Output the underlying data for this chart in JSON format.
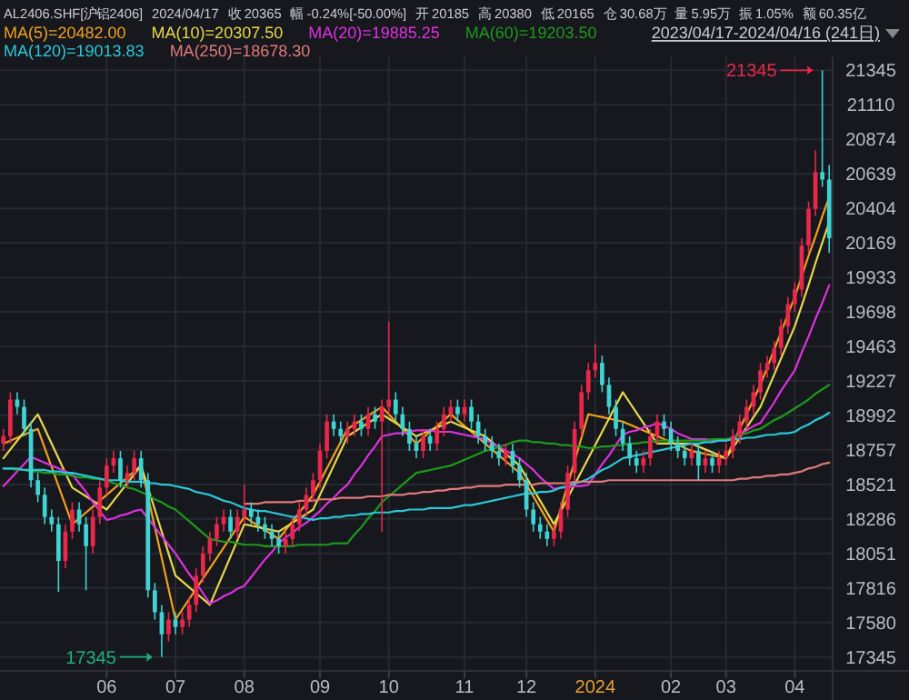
{
  "chart_data": {
    "type": "candlestick",
    "title": "AL2406.SHF[沪铝2406]",
    "subtitle": "2024/04/17",
    "annotations": [
      "收 20365",
      "幅 -0.24%[-50.00%]",
      "开 20185",
      "高 20380",
      "低 20165",
      "仓 30.68万",
      "量 5.95万",
      "振 1.05%",
      "额 60.35亿",
      "2023/04/17-2024/04/16 (241日)",
      "21345",
      "17345"
    ],
    "categories": [
      null,
      null,
      null,
      null,
      null,
      null,
      null,
      null,
      null,
      null,
      null,
      null,
      null,
      null,
      null,
      "06",
      null,
      null,
      null,
      null,
      null,
      null,
      null,
      null,
      null,
      "07",
      null,
      null,
      null,
      null,
      null,
      null,
      null,
      null,
      null,
      "08",
      null,
      null,
      null,
      null,
      null,
      null,
      null,
      null,
      null,
      null,
      "09",
      null,
      null,
      null,
      null,
      null,
      null,
      null,
      null,
      null,
      "10",
      null,
      null,
      null,
      null,
      null,
      null,
      null,
      null,
      null,
      null,
      "11",
      null,
      null,
      null,
      null,
      null,
      null,
      null,
      null,
      "12",
      null,
      null,
      null,
      null,
      null,
      null,
      null,
      null,
      null,
      "2024",
      null,
      null,
      null,
      null,
      null,
      null,
      null,
      null,
      null,
      null,
      "02",
      null,
      null,
      null,
      null,
      null,
      null,
      null,
      "03",
      null,
      null,
      null,
      null,
      null,
      null,
      null,
      null,
      null,
      "04",
      null,
      null,
      null,
      null,
      null
    ],
    "ohlc": [
      [
        18800,
        18900,
        18750,
        18850
      ],
      [
        18850,
        19150,
        18800,
        19100
      ],
      [
        19100,
        19150,
        19000,
        19050
      ],
      [
        19050,
        19100,
        18850,
        18900
      ],
      [
        18900,
        18950,
        18500,
        18550
      ],
      [
        18550,
        18600,
        18400,
        18450
      ],
      [
        18450,
        18500,
        18250,
        18300
      ],
      [
        18300,
        18350,
        18200,
        18250
      ],
      [
        18250,
        18300,
        17790,
        18000
      ],
      [
        18000,
        18250,
        17950,
        18200
      ],
      [
        18200,
        18400,
        18150,
        18350
      ],
      [
        18350,
        18400,
        18200,
        18250
      ],
      [
        18250,
        18300,
        17800,
        18100
      ],
      [
        18100,
        18350,
        18050,
        18300
      ],
      [
        18300,
        18550,
        18250,
        18500
      ],
      [
        18500,
        18700,
        18450,
        18650
      ],
      [
        18650,
        18750,
        18600,
        18700
      ],
      [
        18700,
        18750,
        18500,
        18550
      ],
      [
        18550,
        18650,
        18500,
        18600
      ],
      [
        18600,
        18750,
        18550,
        18700
      ],
      [
        18700,
        18750,
        18500,
        18550
      ],
      [
        18550,
        18600,
        17750,
        17800
      ],
      [
        17800,
        17850,
        17600,
        17650
      ],
      [
        17650,
        17700,
        17345,
        17500
      ],
      [
        17500,
        17650,
        17450,
        17600
      ],
      [
        17600,
        17650,
        17500,
        17550
      ],
      [
        17550,
        17650,
        17500,
        17600
      ],
      [
        17600,
        17750,
        17550,
        17700
      ],
      [
        17700,
        17950,
        17650,
        17900
      ],
      [
        17900,
        18100,
        17850,
        18050
      ],
      [
        18050,
        18200,
        18000,
        18150
      ],
      [
        18150,
        18300,
        18100,
        18250
      ],
      [
        18250,
        18350,
        18200,
        18300
      ],
      [
        18300,
        18350,
        18150,
        18200
      ],
      [
        18200,
        18350,
        18150,
        18300
      ],
      [
        18300,
        18520,
        18250,
        18350
      ],
      [
        18350,
        18400,
        18250,
        18300
      ],
      [
        18300,
        18350,
        18200,
        18250
      ],
      [
        18250,
        18300,
        18150,
        18200
      ],
      [
        18200,
        18250,
        18100,
        18150
      ],
      [
        18150,
        18200,
        18050,
        18100
      ],
      [
        18100,
        18200,
        18050,
        18150
      ],
      [
        18150,
        18300,
        18100,
        18250
      ],
      [
        18250,
        18400,
        18200,
        18350
      ],
      [
        18350,
        18500,
        18300,
        18450
      ],
      [
        18450,
        18600,
        18400,
        18550
      ],
      [
        18550,
        18800,
        18500,
        18750
      ],
      [
        18750,
        19000,
        18700,
        18950
      ],
      [
        18950,
        19000,
        18850,
        18900
      ],
      [
        18900,
        18950,
        18800,
        18850
      ],
      [
        18850,
        18950,
        18800,
        18900
      ],
      [
        18900,
        19000,
        18850,
        18950
      ],
      [
        18950,
        19000,
        18850,
        18900
      ],
      [
        18900,
        19050,
        18850,
        19000
      ],
      [
        19000,
        19050,
        18900,
        18950
      ],
      [
        18950,
        19100,
        18200,
        19050
      ],
      [
        19050,
        19630,
        19000,
        19100
      ],
      [
        19100,
        19150,
        18950,
        19000
      ],
      [
        19000,
        19050,
        18850,
        18900
      ],
      [
        18900,
        18950,
        18750,
        18800
      ],
      [
        18800,
        18850,
        18700,
        18750
      ],
      [
        18750,
        18900,
        18700,
        18850
      ],
      [
        18850,
        18900,
        18750,
        18800
      ],
      [
        18800,
        18950,
        18750,
        18900
      ],
      [
        18900,
        19050,
        18850,
        19000
      ],
      [
        19000,
        19100,
        18950,
        19050
      ],
      [
        19050,
        19100,
        18950,
        19000
      ],
      [
        19000,
        19100,
        18950,
        19050
      ],
      [
        19050,
        19100,
        18900,
        18950
      ],
      [
        18950,
        19000,
        18800,
        18850
      ],
      [
        18850,
        18900,
        18750,
        18800
      ],
      [
        18800,
        18850,
        18700,
        18750
      ],
      [
        18750,
        18800,
        18650,
        18700
      ],
      [
        18700,
        18800,
        18650,
        18750
      ],
      [
        18750,
        18800,
        18600,
        18650
      ],
      [
        18650,
        18700,
        18500,
        18550
      ],
      [
        18550,
        18600,
        18300,
        18350
      ],
      [
        18350,
        18400,
        18200,
        18250
      ],
      [
        18250,
        18300,
        18150,
        18200
      ],
      [
        18200,
        18250,
        18100,
        18150
      ],
      [
        18150,
        18250,
        18100,
        18200
      ],
      [
        18200,
        18400,
        18150,
        18350
      ],
      [
        18350,
        18650,
        18300,
        18600
      ],
      [
        18600,
        18950,
        18550,
        18900
      ],
      [
        18900,
        19200,
        18850,
        19150
      ],
      [
        19150,
        19350,
        19100,
        19300
      ],
      [
        19300,
        19480,
        19250,
        19350
      ],
      [
        19350,
        19400,
        19150,
        19200
      ],
      [
        19200,
        19250,
        19000,
        19050
      ],
      [
        19050,
        19100,
        18850,
        18900
      ],
      [
        18900,
        18950,
        18750,
        18800
      ],
      [
        18800,
        18850,
        18650,
        18700
      ],
      [
        18700,
        18750,
        18600,
        18650
      ],
      [
        18650,
        18750,
        18600,
        18700
      ],
      [
        18700,
        18900,
        18650,
        18850
      ],
      [
        18850,
        19000,
        18800,
        18950
      ],
      [
        18950,
        19000,
        18850,
        18900
      ],
      [
        18900,
        18950,
        18750,
        18800
      ],
      [
        18800,
        18850,
        18700,
        18750
      ],
      [
        18750,
        18800,
        18650,
        18700
      ],
      [
        18700,
        18800,
        18650,
        18750
      ],
      [
        18750,
        18800,
        18550,
        18650
      ],
      [
        18650,
        18750,
        18600,
        18700
      ],
      [
        18700,
        18750,
        18600,
        18650
      ],
      [
        18650,
        18750,
        18600,
        18700
      ],
      [
        18700,
        18800,
        18650,
        18750
      ],
      [
        18750,
        18900,
        18700,
        18850
      ],
      [
        18850,
        19000,
        18800,
        18950
      ],
      [
        18950,
        19100,
        18900,
        19050
      ],
      [
        19050,
        19200,
        19000,
        19150
      ],
      [
        19150,
        19350,
        19100,
        19300
      ],
      [
        19300,
        19400,
        19250,
        19350
      ],
      [
        19350,
        19500,
        19300,
        19450
      ],
      [
        19450,
        19650,
        19400,
        19600
      ],
      [
        19600,
        19800,
        19550,
        19750
      ],
      [
        19750,
        19900,
        19700,
        19850
      ],
      [
        19850,
        20200,
        19800,
        20150
      ],
      [
        20150,
        20450,
        20100,
        20400
      ],
      [
        20400,
        20800,
        20350,
        20650
      ],
      [
        20650,
        21345,
        20550,
        20600
      ],
      [
        20600,
        20700,
        20100,
        20200
      ]
    ],
    "colors": [
      "#e8274b",
      "#e8274b",
      "#3fd3d3",
      "#3fd3d3",
      "#3fd3d3",
      "#3fd3d3",
      "#3fd3d3",
      "#3fd3d3",
      "#3fd3d3",
      "#e8274b",
      "#e8274b",
      "#3fd3d3",
      "#3fd3d3",
      "#e8274b",
      "#e8274b",
      "#e8274b",
      "#e8274b",
      "#3fd3d3",
      "#e8274b",
      "#e8274b",
      "#3fd3d3",
      "#3fd3d3",
      "#3fd3d3",
      "#3fd3d3",
      "#e8274b",
      "#3fd3d3",
      "#e8274b",
      "#e8274b",
      "#e8274b",
      "#e8274b",
      "#e8274b",
      "#e8274b",
      "#e8274b",
      "#3fd3d3",
      "#e8274b",
      "#e8274b",
      "#3fd3d3",
      "#3fd3d3",
      "#3fd3d3",
      "#3fd3d3",
      "#3fd3d3",
      "#e8274b",
      "#e8274b",
      "#e8274b",
      "#e8274b",
      "#e8274b",
      "#e8274b",
      "#e8274b",
      "#3fd3d3",
      "#3fd3d3",
      "#e8274b",
      "#e8274b",
      "#3fd3d3",
      "#e8274b",
      "#3fd3d3",
      "#e8274b",
      "#e8274b",
      "#3fd3d3",
      "#3fd3d3",
      "#3fd3d3",
      "#3fd3d3",
      "#e8274b",
      "#3fd3d3",
      "#e8274b",
      "#e8274b",
      "#e8274b",
      "#3fd3d3",
      "#e8274b",
      "#3fd3d3",
      "#3fd3d3",
      "#3fd3d3",
      "#3fd3d3",
      "#3fd3d3",
      "#e8274b",
      "#3fd3d3",
      "#3fd3d3",
      "#3fd3d3",
      "#3fd3d3",
      "#3fd3d3",
      "#3fd3d3",
      "#e8274b",
      "#e8274b",
      "#e8274b",
      "#e8274b",
      "#e8274b",
      "#e8274b",
      "#e8274b",
      "#3fd3d3",
      "#3fd3d3",
      "#3fd3d3",
      "#3fd3d3",
      "#3fd3d3",
      "#3fd3d3",
      "#e8274b",
      "#e8274b",
      "#e8274b",
      "#3fd3d3",
      "#3fd3d3",
      "#3fd3d3",
      "#3fd3d3",
      "#e8274b",
      "#3fd3d3",
      "#e8274b",
      "#3fd3d3",
      "#e8274b",
      "#e8274b",
      "#e8274b",
      "#e8274b",
      "#e8274b",
      "#e8274b",
      "#e8274b",
      "#e8274b",
      "#e8274b",
      "#e8274b",
      "#e8274b",
      "#e8274b",
      "#e8274b",
      "#e8274b",
      "#e8274b",
      "#3fd3d3",
      "#3fd3d3"
    ],
    "series": [
      {
        "name": "MA(5)=20482.00",
        "type": "line",
        "color": "#f0a020",
        "values": [
          18800,
          18820,
          18840,
          18860,
          18880,
          18900,
          18770,
          18640,
          18510,
          18380,
          18250,
          18290,
          18330,
          18370,
          18410,
          18450,
          18490,
          18530,
          18570,
          18610,
          18650,
          18440,
          18230,
          18020,
          17810,
          17600,
          17670,
          17740,
          17810,
          17880,
          17950,
          18020,
          18090,
          18160,
          18230,
          18300,
          18270,
          18240,
          18210,
          18180,
          18150,
          18210,
          18270,
          18330,
          18390,
          18450,
          18540,
          18630,
          18720,
          18810,
          18900,
          18930,
          18960,
          18990,
          19020,
          19050,
          19000,
          18950,
          18900,
          18850,
          18800,
          18840,
          18880,
          18920,
          18960,
          19000,
          18960,
          18920,
          18880,
          18840,
          18800,
          18760,
          18720,
          18680,
          18640,
          18600,
          18520,
          18440,
          18360,
          18280,
          18200,
          18360,
          18520,
          18680,
          18840,
          19000,
          18990,
          18980,
          18970,
          18960,
          18950,
          18930,
          18910,
          18890,
          18870,
          18850,
          18830,
          18810,
          18790,
          18770,
          18750,
          18740,
          18730,
          18720,
          18710,
          18700,
          18800,
          18900,
          19000,
          19100,
          19200,
          19320,
          19440,
          19560,
          19680,
          19800,
          19940,
          20080,
          20210,
          20350,
          20480
        ]
      },
      {
        "name": "MA(10)=20307.50",
        "type": "line",
        "color": "#e6d84a",
        "values": [
          18700,
          18760,
          18820,
          18880,
          18940,
          19000,
          18900,
          18800,
          18700,
          18600,
          18500,
          18470,
          18440,
          18410,
          18380,
          18350,
          18410,
          18470,
          18530,
          18590,
          18650,
          18500,
          18350,
          18200,
          18050,
          17900,
          17860,
          17820,
          17780,
          17740,
          17700,
          17810,
          17920,
          18030,
          18140,
          18250,
          18240,
          18230,
          18220,
          18210,
          18200,
          18230,
          18260,
          18290,
          18320,
          18350,
          18450,
          18550,
          18650,
          18750,
          18850,
          18880,
          18910,
          18940,
          18970,
          19000,
          18970,
          18940,
          18910,
          18880,
          18850,
          18870,
          18890,
          18910,
          18930,
          18950,
          18930,
          18910,
          18890,
          18870,
          18850,
          18810,
          18770,
          18730,
          18690,
          18650,
          18570,
          18490,
          18410,
          18330,
          18250,
          18340,
          18430,
          18520,
          18610,
          18700,
          18790,
          18880,
          18970,
          19060,
          19150,
          19080,
          19010,
          18940,
          18870,
          18800,
          18800,
          18800,
          18800,
          18800,
          18800,
          18780,
          18760,
          18740,
          18720,
          18700,
          18770,
          18840,
          18910,
          18980,
          19050,
          19160,
          19270,
          19380,
          19490,
          19600,
          19740,
          19880,
          20030,
          20170,
          20310
        ]
      },
      {
        "name": "MA(20)=19885.25",
        "type": "line",
        "color": "#e030e0",
        "values": [
          18510,
          18560,
          18610,
          18660,
          18710,
          18690,
          18670,
          18650,
          18630,
          18610,
          18590,
          18530,
          18470,
          18400,
          18340,
          18280,
          18290,
          18310,
          18320,
          18340,
          18350,
          18290,
          18230,
          18170,
          18110,
          18050,
          17980,
          17910,
          17850,
          17780,
          17710,
          17730,
          17760,
          17780,
          17810,
          17830,
          17890,
          17950,
          18010,
          18060,
          18120,
          18160,
          18190,
          18230,
          18260,
          18300,
          18340,
          18390,
          18430,
          18480,
          18520,
          18590,
          18650,
          18720,
          18780,
          18850,
          18860,
          18870,
          18870,
          18880,
          18890,
          18890,
          18890,
          18880,
          18880,
          18880,
          18870,
          18860,
          18850,
          18840,
          18830,
          18800,
          18780,
          18750,
          18730,
          18700,
          18660,
          18620,
          18570,
          18530,
          18490,
          18500,
          18500,
          18510,
          18510,
          18520,
          18590,
          18660,
          18720,
          18790,
          18860,
          18880,
          18890,
          18910,
          18920,
          18940,
          18920,
          18900,
          18870,
          18850,
          18830,
          18830,
          18830,
          18820,
          18820,
          18820,
          18840,
          18870,
          18890,
          18920,
          18940,
          19010,
          19080,
          19160,
          19230,
          19300,
          19420,
          19530,
          19650,
          19760,
          19880
        ]
      },
      {
        "name": "MA(60)=19203.50",
        "type": "line",
        "color": "#1c9a1c",
        "values": [
          18630,
          18630,
          18620,
          18620,
          18610,
          18610,
          18600,
          18600,
          18590,
          18590,
          18580,
          18570,
          18570,
          18560,
          18560,
          18550,
          18530,
          18520,
          18500,
          18490,
          18470,
          18450,
          18420,
          18400,
          18370,
          18350,
          18310,
          18270,
          18230,
          18190,
          18150,
          18140,
          18130,
          18130,
          18120,
          18110,
          18110,
          18110,
          18100,
          18100,
          18100,
          18100,
          18100,
          18110,
          18110,
          18110,
          18110,
          18110,
          18120,
          18120,
          18120,
          18180,
          18230,
          18290,
          18340,
          18400,
          18440,
          18480,
          18520,
          18560,
          18600,
          18610,
          18620,
          18630,
          18640,
          18650,
          18670,
          18690,
          18710,
          18730,
          18750,
          18760,
          18780,
          18790,
          18810,
          18820,
          18820,
          18810,
          18810,
          18800,
          18800,
          18790,
          18790,
          18780,
          18780,
          18770,
          18770,
          18780,
          18780,
          18790,
          18790,
          18800,
          18800,
          18810,
          18810,
          18820,
          18820,
          18820,
          18820,
          18820,
          18820,
          18820,
          18820,
          18830,
          18830,
          18830,
          18840,
          18860,
          18870,
          18890,
          18900,
          18930,
          18960,
          18980,
          19010,
          19040,
          19070,
          19100,
          19140,
          19170,
          19200
        ]
      },
      {
        "name": "MA(120)=19013.83",
        "type": "line",
        "color": "#2ac8d8",
        "values": [
          18630,
          18630,
          18630,
          18620,
          18620,
          18620,
          18620,
          18610,
          18610,
          18600,
          18600,
          18590,
          18580,
          18570,
          18560,
          18550,
          18550,
          18550,
          18540,
          18540,
          18540,
          18530,
          18530,
          18520,
          18520,
          18510,
          18500,
          18490,
          18470,
          18460,
          18450,
          18430,
          18410,
          18400,
          18380,
          18360,
          18350,
          18340,
          18340,
          18330,
          18320,
          18310,
          18300,
          18300,
          18290,
          18280,
          18290,
          18290,
          18300,
          18300,
          18310,
          18310,
          18320,
          18320,
          18330,
          18330,
          18330,
          18340,
          18340,
          18350,
          18350,
          18350,
          18360,
          18360,
          18360,
          18360,
          18370,
          18380,
          18380,
          18390,
          18400,
          18410,
          18420,
          18430,
          18440,
          18450,
          18460,
          18460,
          18470,
          18470,
          18480,
          18500,
          18510,
          18530,
          18540,
          18560,
          18590,
          18620,
          18640,
          18670,
          18700,
          18710,
          18720,
          18730,
          18740,
          18750,
          18760,
          18770,
          18780,
          18790,
          18800,
          18800,
          18810,
          18810,
          18820,
          18820,
          18830,
          18830,
          18840,
          18840,
          18850,
          18860,
          18860,
          18870,
          18870,
          18880,
          18910,
          18930,
          18960,
          18980,
          19010
        ]
      },
      {
        "name": "MA(250)=18678.30",
        "type": "line",
        "color": "#e07a7a",
        "values": [
          null,
          null,
          null,
          null,
          null,
          null,
          null,
          null,
          null,
          null,
          null,
          null,
          null,
          null,
          null,
          null,
          null,
          null,
          null,
          null,
          null,
          null,
          null,
          null,
          null,
          null,
          null,
          null,
          null,
          null,
          null,
          null,
          null,
          null,
          null,
          18390,
          18390,
          18390,
          18400,
          18400,
          18400,
          18400,
          18400,
          18410,
          18410,
          18410,
          18420,
          18420,
          18420,
          18430,
          18430,
          18430,
          18430,
          18440,
          18440,
          18440,
          18450,
          18450,
          18450,
          18460,
          18460,
          18470,
          18470,
          18480,
          18480,
          18490,
          18490,
          18500,
          18500,
          18510,
          18510,
          18510,
          18510,
          18520,
          18520,
          18520,
          18520,
          18520,
          18530,
          18530,
          18530,
          18530,
          18530,
          18540,
          18540,
          18540,
          18540,
          18540,
          18550,
          18550,
          18550,
          18550,
          18550,
          18550,
          18550,
          18550,
          18550,
          18550,
          18550,
          18550,
          18550,
          18550,
          18550,
          18550,
          18550,
          18550,
          18550,
          18560,
          18560,
          18570,
          18570,
          18580,
          18580,
          18590,
          18590,
          18600,
          18610,
          18630,
          18640,
          18660,
          18670
        ]
      }
    ],
    "ylim": [
      17250,
      21440
    ],
    "yticks": [
      17345,
      17580,
      17816,
      18051,
      18286,
      18521,
      18757,
      18992,
      19227,
      19463,
      19698,
      19933,
      20169,
      20404,
      20639,
      20874,
      21110,
      21345
    ],
    "grid": true,
    "legend": "top left"
  }
}
